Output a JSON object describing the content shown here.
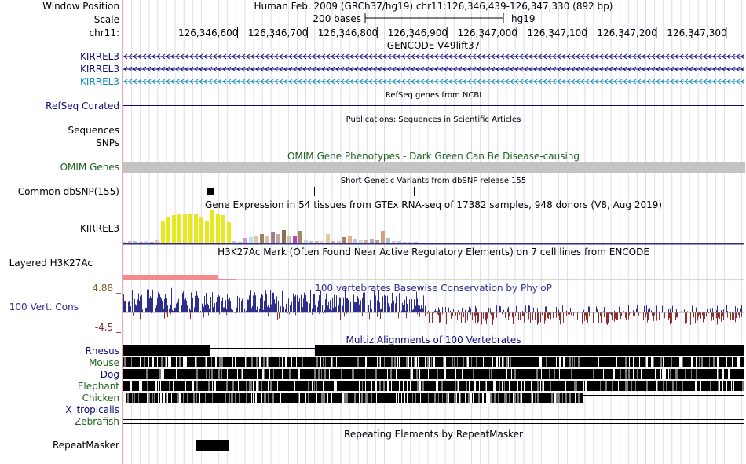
{
  "header": {
    "window_position_label": "Window Position",
    "scale_label": "Scale",
    "chrom_label": "chr11:",
    "assembly_position": "Human Feb. 2009 (GRCh37/hg19)   chr11:126,346,439-126,347,330 (892 bp)",
    "scale_text": "200 bases",
    "scale_db": "hg19",
    "ruler_ticks": [
      "126,346,600",
      "126,346,700",
      "126,346,800",
      "126,346,900",
      "126,347,000",
      "126,347,100",
      "126,347,200",
      "126,347,300"
    ]
  },
  "tracks": {
    "gencode": {
      "title": "GENCODE V49lift37",
      "genes": [
        {
          "label": "KIRREL3",
          "color": "#0c0c78"
        },
        {
          "label": "KIRREL3",
          "color": "#0c0c78"
        },
        {
          "label": "KIRREL3",
          "color": "#0c8cbc"
        }
      ]
    },
    "refseq": {
      "title": "RefSeq genes from NCBI",
      "label": "RefSeq Curated",
      "color": "#0c0c78"
    },
    "publications": {
      "title": "Publications: Sequences in Scientific Articles",
      "label_line1": "Sequences",
      "label_line2": "SNPs"
    },
    "omim": {
      "title": "OMIM Gene Phenotypes - Dark Green Can Be Disease-causing",
      "label": "OMIM Genes",
      "color": "#1e641e"
    },
    "dbsnp": {
      "title": "Short Genetic Variants from dbSNP release 155",
      "label": "Common dbSNP(155)"
    },
    "gtex": {
      "title": "Gene Expression in 54 tissues from GTEx RNA-seq of 17382 samples, 948 donors (V8, Aug 2019)",
      "label": "KIRREL3"
    },
    "h3k27ac": {
      "title": "H3K27Ac Mark (Often Found Near Active Regulatory Elements) on 7 cell lines from ENCODE",
      "label": "Layered H3K27Ac"
    },
    "phylop": {
      "title": "100 vertebrates Basewise Conservation by PhyloP",
      "label": "100 Vert. Cons",
      "max_label": "4.88 _",
      "min_label": "-4.5 _",
      "color": "#2e2e8c"
    },
    "multiz": {
      "title": "Multiz Alignments of 100 Vertebrates",
      "species": [
        {
          "label": "Rhesus",
          "color": "#0c0c78"
        },
        {
          "label": "Mouse",
          "color": "#1e641e"
        },
        {
          "label": "Dog",
          "color": "#0c0c78"
        },
        {
          "label": "Elephant",
          "color": "#1e641e"
        },
        {
          "label": "Chicken",
          "color": "#1e641e"
        },
        {
          "label": "X_tropicalis",
          "color": "#0c0c78"
        },
        {
          "label": "Zebrafish",
          "color": "#1e641e"
        }
      ]
    },
    "repeatmasker": {
      "title": "Repeating Elements by RepeatMasker",
      "label": "RepeatMasker"
    }
  }
}
